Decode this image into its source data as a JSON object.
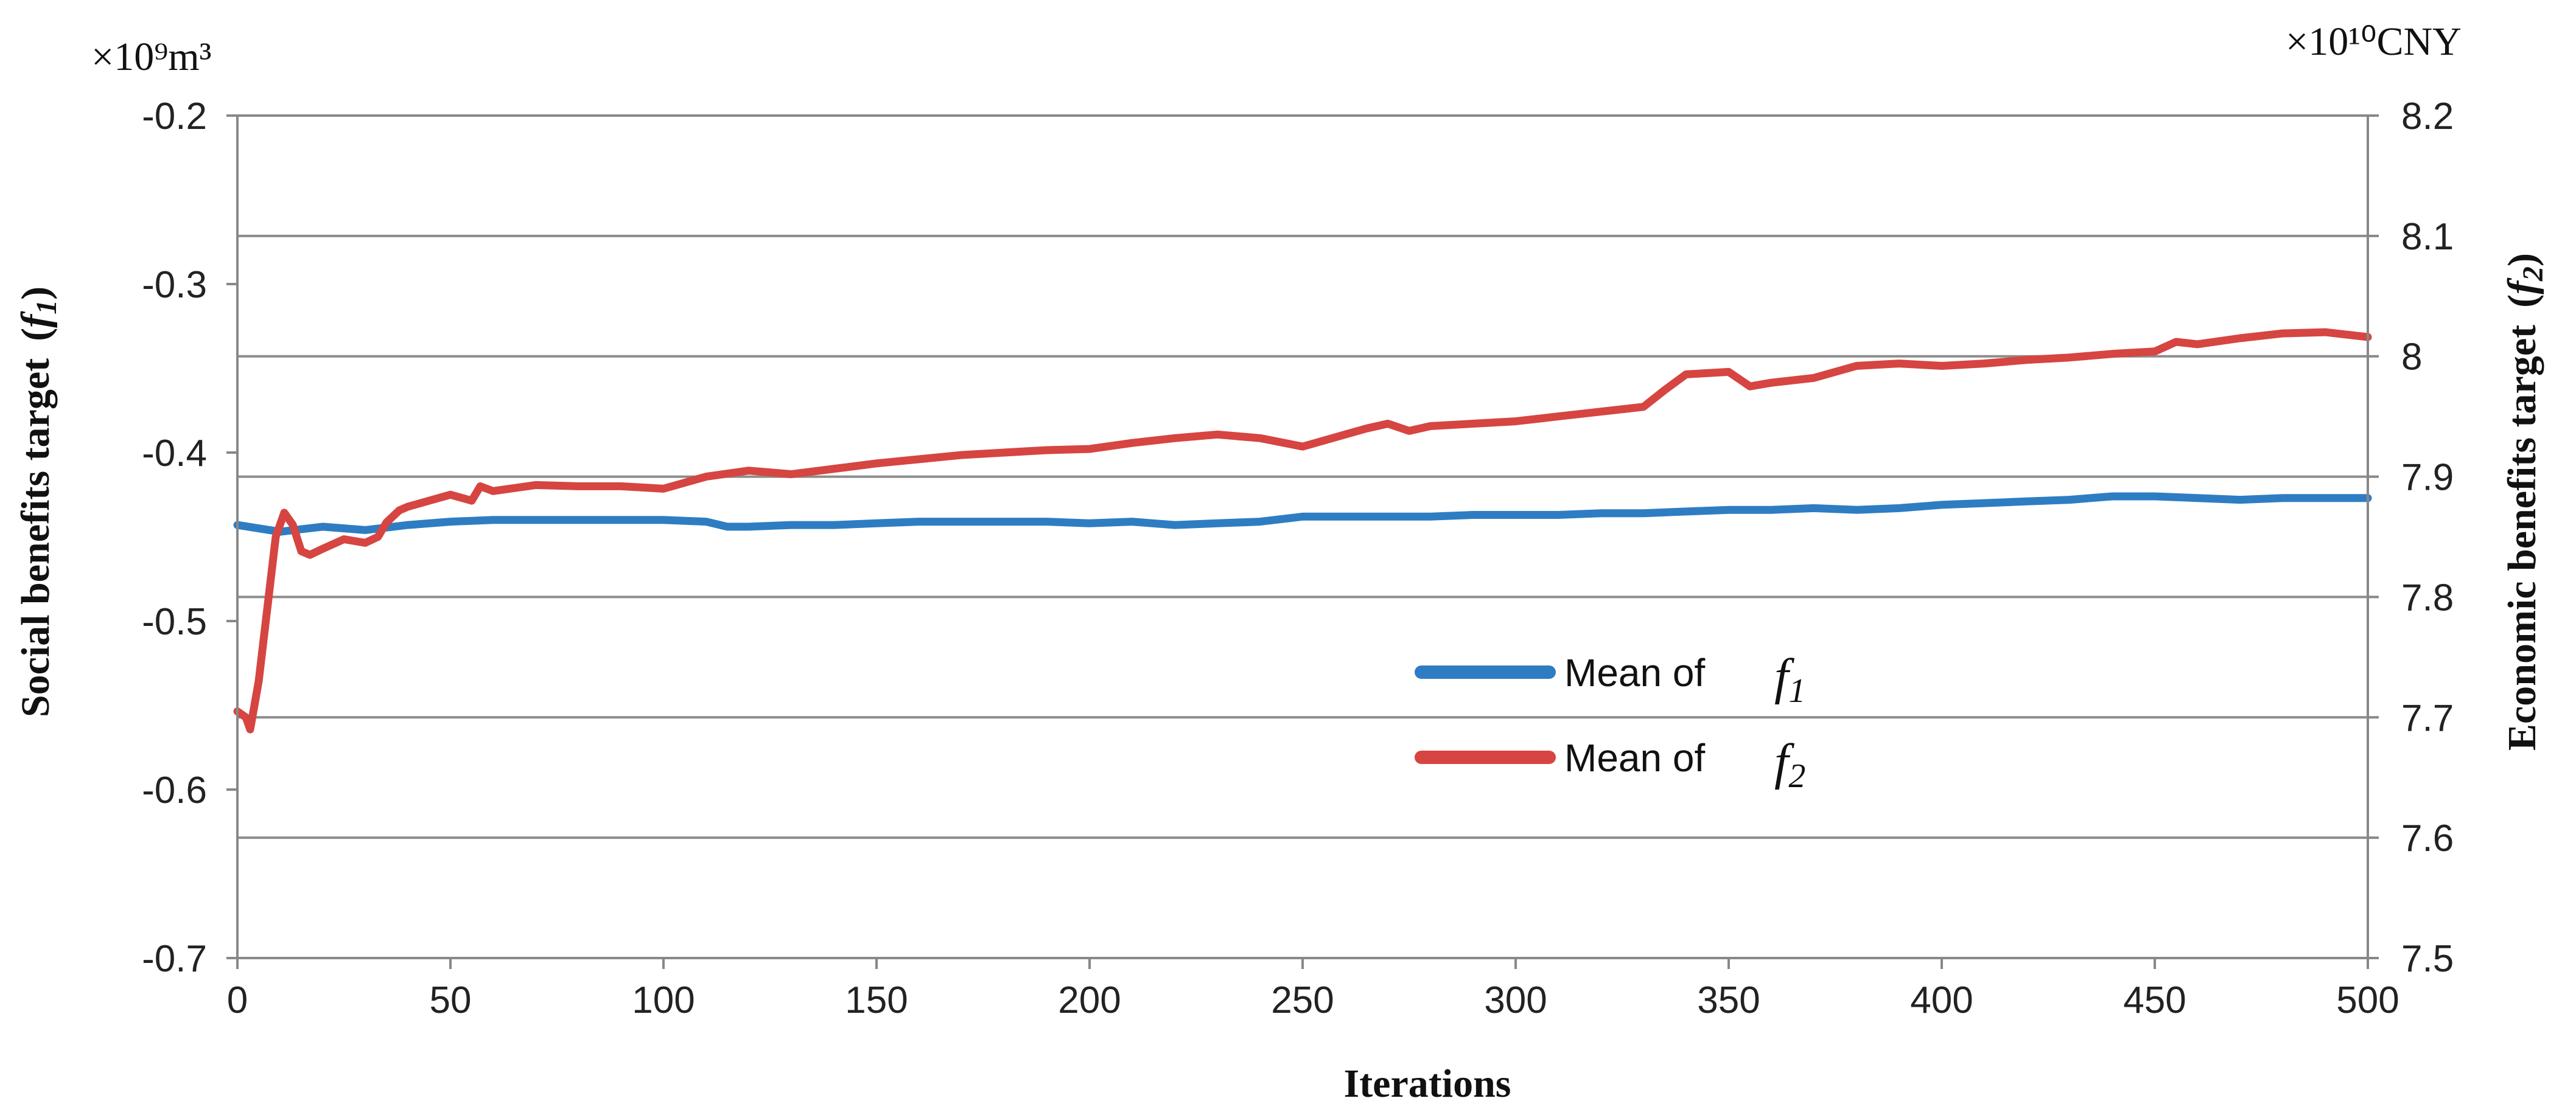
{
  "chart_data": {
    "type": "line",
    "xlabel": "Iterations",
    "ylabel_left": "Social benefits target",
    "ylabel_left_symbol": "f1",
    "ylabel_right": "Economic benefits target",
    "ylabel_right_symbol": "f2",
    "unit_left": "×10⁹m³",
    "unit_right": "×10¹⁰CNY",
    "xlim": [
      0,
      500
    ],
    "ylim_left": [
      -0.7,
      -0.2
    ],
    "ylim_right": [
      7.5,
      8.2
    ],
    "x_ticks": [
      "0",
      "50",
      "100",
      "150",
      "200",
      "250",
      "300",
      "350",
      "400",
      "450",
      "500"
    ],
    "y_left_ticks": [
      "-0.2",
      "-0.3",
      "-0.4",
      "-0.5",
      "-0.6",
      "-0.7"
    ],
    "y_right_ticks": [
      "8.2",
      "8.1",
      "8",
      "7.9",
      "7.8",
      "7.7",
      "7.6",
      "7.5"
    ],
    "grid": "horizontal",
    "legend_position": "center",
    "series": [
      {
        "name": "Mean of f1",
        "legend_prefix": "Mean of",
        "legend_symbol": "f1",
        "axis": "left",
        "color": "#2E7DC3",
        "x": [
          0,
          10,
          20,
          30,
          40,
          50,
          60,
          70,
          80,
          90,
          100,
          110,
          115,
          120,
          130,
          140,
          150,
          160,
          170,
          180,
          190,
          200,
          210,
          220,
          230,
          240,
          250,
          260,
          270,
          280,
          290,
          300,
          310,
          320,
          330,
          340,
          350,
          360,
          370,
          380,
          390,
          400,
          410,
          420,
          430,
          440,
          450,
          460,
          470,
          480,
          490,
          500
        ],
        "y": [
          -0.443,
          -0.447,
          -0.444,
          -0.446,
          -0.443,
          -0.441,
          -0.44,
          -0.44,
          -0.44,
          -0.44,
          -0.44,
          -0.441,
          -0.444,
          -0.444,
          -0.443,
          -0.443,
          -0.442,
          -0.441,
          -0.441,
          -0.441,
          -0.441,
          -0.442,
          -0.441,
          -0.443,
          -0.442,
          -0.441,
          -0.438,
          -0.438,
          -0.438,
          -0.438,
          -0.437,
          -0.437,
          -0.437,
          -0.436,
          -0.436,
          -0.435,
          -0.434,
          -0.434,
          -0.433,
          -0.434,
          -0.433,
          -0.431,
          -0.43,
          -0.429,
          -0.428,
          -0.426,
          -0.426,
          -0.427,
          -0.428,
          -0.427,
          -0.427,
          -0.427
        ]
      },
      {
        "name": "Mean of f2",
        "legend_prefix": "Mean of",
        "legend_symbol": "f2",
        "axis": "right",
        "color": "#D64541",
        "x": [
          0,
          2,
          3,
          5,
          7,
          9,
          11,
          13,
          15,
          17,
          20,
          25,
          30,
          33,
          35,
          38,
          40,
          45,
          50,
          55,
          57,
          60,
          70,
          80,
          90,
          100,
          110,
          120,
          130,
          150,
          170,
          190,
          200,
          210,
          220,
          230,
          240,
          250,
          260,
          265,
          270,
          275,
          280,
          290,
          300,
          310,
          320,
          330,
          335,
          340,
          350,
          355,
          360,
          370,
          380,
          390,
          400,
          410,
          420,
          430,
          440,
          450,
          455,
          460,
          470,
          480,
          490,
          500
        ],
        "y": [
          7.705,
          7.7,
          7.69,
          7.73,
          7.79,
          7.85,
          7.87,
          7.86,
          7.838,
          7.835,
          7.84,
          7.848,
          7.845,
          7.85,
          7.862,
          7.872,
          7.875,
          7.88,
          7.885,
          7.88,
          7.892,
          7.888,
          7.893,
          7.892,
          7.892,
          7.89,
          7.9,
          7.905,
          7.902,
          7.911,
          7.918,
          7.922,
          7.923,
          7.928,
          7.932,
          7.935,
          7.932,
          7.925,
          7.935,
          7.94,
          7.944,
          7.938,
          7.942,
          7.944,
          7.946,
          7.95,
          7.954,
          7.958,
          7.972,
          7.985,
          7.987,
          7.975,
          7.978,
          7.982,
          7.992,
          7.994,
          7.992,
          7.994,
          7.997,
          7.999,
          8.002,
          8.004,
          8.012,
          8.01,
          8.015,
          8.019,
          8.02,
          8.016
        ]
      }
    ]
  }
}
